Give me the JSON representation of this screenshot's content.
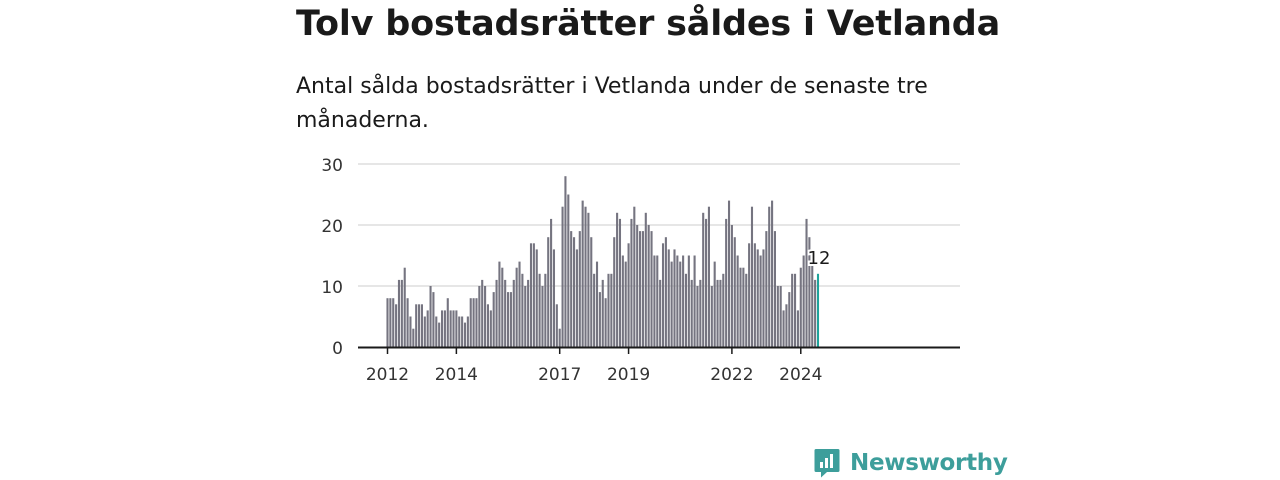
{
  "title": "Tolv bostadsrätter såldes i Vetlanda",
  "subtitle": "Antal sålda bostadsrätter i Vetlanda under de senaste tre månaderna.",
  "brand": {
    "name": "Newsworthy",
    "icon": "newsworthy-bar-chart-icon",
    "color": "#3d9e9b"
  },
  "colors": {
    "bar": "#757480",
    "highlight": "#1fa39b",
    "grid": "#dddddd",
    "axis": "#1a1a1a",
    "text": "#333333"
  },
  "chart_data": {
    "type": "bar",
    "title": "Tolv bostadsrätter såldes i Vetlanda",
    "xlabel": "",
    "ylabel": "",
    "ylim": [
      0,
      30
    ],
    "yticks": [
      0,
      10,
      20,
      30
    ],
    "xticks": [
      {
        "label": "2012",
        "index": 0
      },
      {
        "label": "2014",
        "index": 24
      },
      {
        "label": "2017",
        "index": 60
      },
      {
        "label": "2019",
        "index": 84
      },
      {
        "label": "2022",
        "index": 120
      },
      {
        "label": "2024",
        "index": 144
      }
    ],
    "start": "2012-01",
    "frequency": "monthly",
    "grid": true,
    "highlight": {
      "index": 150,
      "label": "12"
    },
    "values": [
      8,
      8,
      8,
      7,
      11,
      11,
      13,
      8,
      5,
      3,
      7,
      7,
      7,
      5,
      6,
      10,
      9,
      5,
      4,
      6,
      6,
      8,
      6,
      6,
      6,
      5,
      5,
      4,
      5,
      8,
      8,
      8,
      10,
      11,
      10,
      7,
      6,
      9,
      11,
      14,
      13,
      11,
      9,
      9,
      11,
      13,
      14,
      12,
      10,
      11,
      17,
      17,
      16,
      12,
      10,
      12,
      18,
      21,
      16,
      7,
      3,
      23,
      28,
      25,
      19,
      18,
      16,
      19,
      24,
      23,
      22,
      18,
      12,
      14,
      9,
      11,
      8,
      12,
      12,
      18,
      22,
      21,
      15,
      14,
      17,
      21,
      23,
      20,
      19,
      19,
      22,
      20,
      19,
      15,
      15,
      11,
      17,
      18,
      16,
      14,
      16,
      15,
      14,
      15,
      12,
      15,
      11,
      15,
      10,
      11,
      22,
      21,
      23,
      10,
      14,
      11,
      11,
      12,
      21,
      24,
      20,
      18,
      15,
      13,
      13,
      12,
      17,
      23,
      17,
      16,
      15,
      16,
      19,
      23,
      24,
      19,
      10,
      10,
      6,
      7,
      9,
      12,
      12,
      6,
      13,
      15,
      21,
      18,
      16,
      11,
      12
    ]
  }
}
